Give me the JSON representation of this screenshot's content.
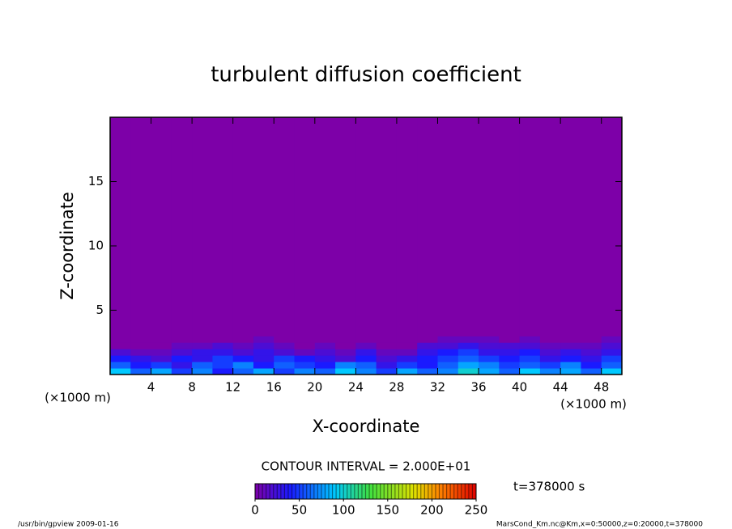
{
  "chart_data": {
    "type": "heatmap",
    "title": "turbulent diffusion coefficient",
    "x_label": "X-coordinate",
    "y_label": "Z-coordinate",
    "x_unit_label_left": "(×1000 m)",
    "x_unit_label_right": "(×1000 m)",
    "contour_interval": "CONTOUR INTERVAL = 2.000E+01",
    "time_label": "t=378000 s",
    "footer_left": "/usr/bin/gpview   2009-01-16",
    "footer_right": "MarsCond_Km.nc@Km,x=0:50000,z=0:20000,t=378000",
    "xlim": [
      0,
      50
    ],
    "ylim": [
      0,
      20
    ],
    "xticks": [
      4,
      8,
      12,
      16,
      20,
      24,
      28,
      32,
      36,
      40,
      44,
      48
    ],
    "yticks": [
      5,
      10,
      15
    ],
    "x_edges": [
      0,
      2,
      4,
      6,
      8,
      10,
      12,
      14,
      16,
      18,
      20,
      22,
      24,
      26,
      28,
      30,
      32,
      34,
      36,
      38,
      40,
      42,
      44,
      46,
      48,
      50
    ],
    "z_edges": [
      0,
      0.5,
      1,
      1.5,
      2,
      2.5,
      3,
      20
    ],
    "values": [
      [
        90,
        60,
        80,
        50,
        70,
        40,
        60,
        80,
        50,
        70,
        60,
        90,
        70,
        50,
        80,
        60,
        70,
        100,
        80,
        60,
        90,
        70,
        80,
        60,
        90
      ],
      [
        60,
        40,
        50,
        30,
        60,
        50,
        70,
        40,
        60,
        50,
        40,
        70,
        60,
        30,
        50,
        40,
        60,
        80,
        70,
        50,
        60,
        50,
        70,
        40,
        60
      ],
      [
        40,
        30,
        20,
        40,
        30,
        50,
        40,
        30,
        50,
        40,
        30,
        20,
        40,
        20,
        30,
        40,
        50,
        60,
        50,
        40,
        50,
        30,
        40,
        30,
        50
      ],
      [
        20,
        10,
        10,
        20,
        30,
        30,
        20,
        30,
        20,
        10,
        20,
        10,
        30,
        10,
        10,
        30,
        40,
        50,
        30,
        30,
        40,
        20,
        30,
        20,
        30
      ],
      [
        0,
        0,
        0,
        10,
        10,
        20,
        10,
        20,
        10,
        0,
        10,
        0,
        10,
        0,
        0,
        20,
        20,
        30,
        20,
        20,
        20,
        10,
        10,
        10,
        20
      ],
      [
        0,
        0,
        0,
        0,
        0,
        0,
        0,
        10,
        0,
        0,
        0,
        0,
        0,
        0,
        0,
        0,
        10,
        10,
        10,
        0,
        10,
        0,
        0,
        0,
        10
      ],
      [
        0,
        0,
        0,
        0,
        0,
        0,
        0,
        0,
        0,
        0,
        0,
        0,
        0,
        0,
        0,
        0,
        0,
        0,
        0,
        0,
        0,
        0,
        0,
        0,
        0
      ]
    ],
    "clim": [
      0,
      250
    ],
    "colorbar_ticks": [
      0,
      50,
      100,
      150,
      200,
      250
    ],
    "colorscale": [
      [
        0,
        "#7d00a8"
      ],
      [
        40,
        "#1a1aff"
      ],
      [
        90,
        "#00c8ff"
      ],
      [
        130,
        "#40e040"
      ],
      [
        180,
        "#e0e000"
      ],
      [
        210,
        "#ff8000"
      ],
      [
        250,
        "#e00000"
      ]
    ]
  }
}
